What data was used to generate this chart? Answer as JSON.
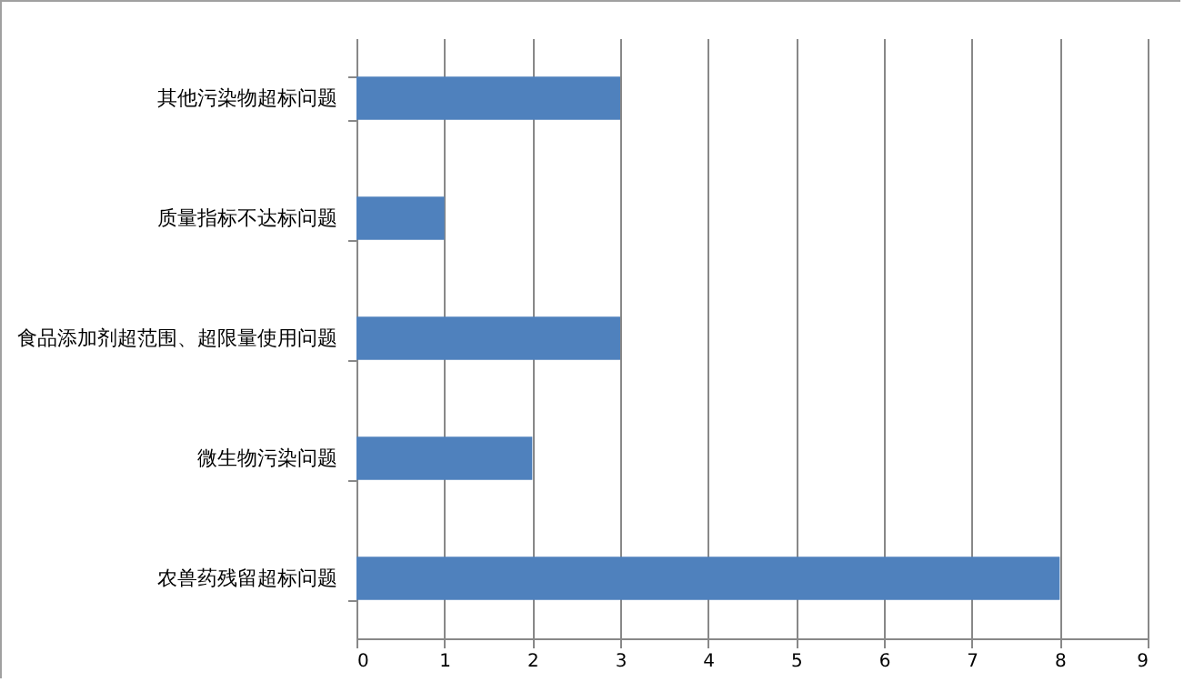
{
  "chart_data": {
    "type": "bar",
    "orientation": "horizontal",
    "categories": [
      "其他污染物超标问题",
      "质量指标不达标问题",
      "食品添加剂超范围、超限量使用问题",
      "微生物污染问题",
      "农兽药残留超标问题"
    ],
    "values": [
      3,
      1,
      3,
      2,
      8
    ],
    "color": "#4f81bd",
    "xlim": [
      0,
      9
    ],
    "xticks": [
      0,
      1,
      2,
      3,
      4,
      5,
      6,
      7,
      8,
      9
    ],
    "grid": "x"
  }
}
